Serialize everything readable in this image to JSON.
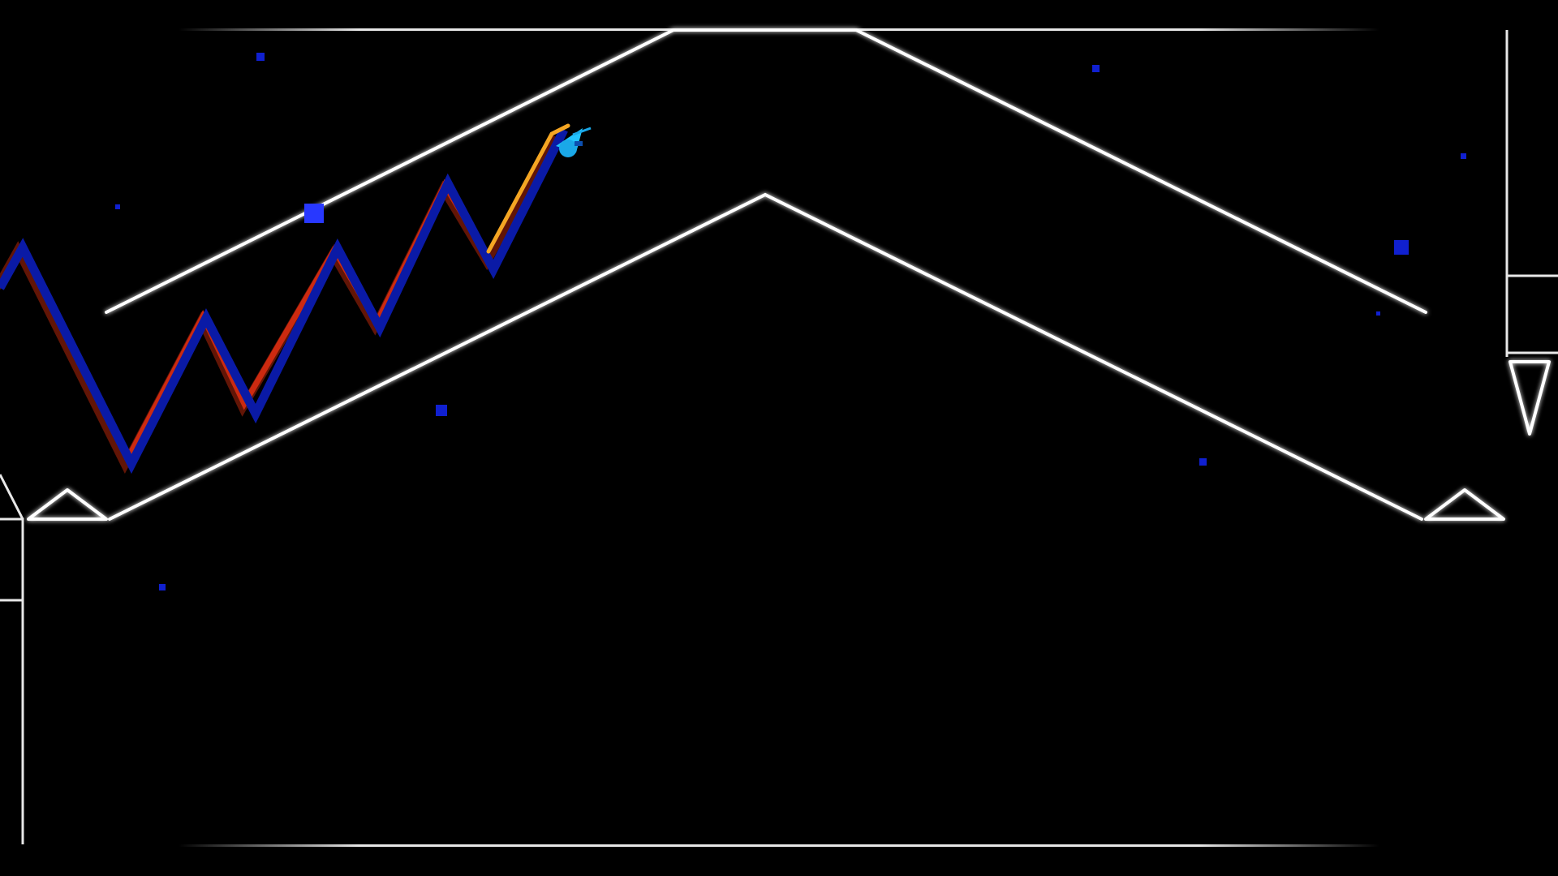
{
  "game": {
    "mode": "wave",
    "colors": {
      "background": "#000000",
      "outline": "#ffffff",
      "wave_body": "#0a1aa6",
      "wave_trail_primary": "#f5a623",
      "wave_trail_secondary": "#cc2a10",
      "player_icon": "#22c4ff",
      "particle": "#1020d0"
    },
    "icons": {
      "player": "wave-arrow-icon",
      "hazard": "spike-icon"
    }
  }
}
